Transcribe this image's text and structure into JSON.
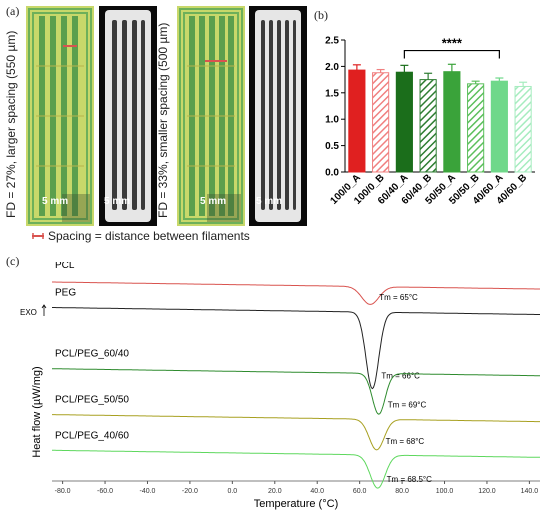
{
  "panel_a": {
    "label": "(a)",
    "caption_left": "FD = 27%, larger spacing (550 µm)",
    "caption_right": "FD = 33%, smaller spacing (500 µm)",
    "scale_labels": [
      "5 mm",
      "5 mm",
      "5 mm",
      "5 mm"
    ],
    "legend_text": "Spacing = distance between filaments",
    "colors": {
      "scaffold_green": "#7fc35a",
      "scaffold_yellow": "#d8c65a",
      "spacing_marker": "#d9534f",
      "photo_bg": "#0a0a0a",
      "photo_body": "#e9e9e9"
    }
  },
  "panel_b": {
    "label": "(b)",
    "significance": "****"
  },
  "panel_c": {
    "label": "(c)",
    "exo_label": "EXO",
    "annotations": [
      "Tm = 65°C",
      "Tm = 66°C",
      "Tm = 69°C",
      "Tm = 68°C",
      "Tm = 68.5°C"
    ]
  },
  "chart_data": [
    {
      "type": "bar",
      "categories": [
        "100/0_A",
        "100/0_B",
        "60/40_A",
        "60/40_B",
        "50/50_A",
        "50/50_B",
        "40/60_A",
        "40/60_B"
      ],
      "values": [
        1.93,
        1.88,
        1.89,
        1.75,
        1.9,
        1.67,
        1.72,
        1.62
      ],
      "errors": [
        0.1,
        0.06,
        0.13,
        0.12,
        0.14,
        0.05,
        0.06,
        0.08
      ],
      "colors": [
        "#e02020",
        "#f08080",
        "#1b6e1b",
        "#2e7d32",
        "#3aa33a",
        "#5cbf5c",
        "#6fd88a",
        "#a6ecbf"
      ],
      "hatched": [
        false,
        true,
        false,
        true,
        false,
        true,
        false,
        true
      ],
      "ylim": [
        0,
        2.5
      ],
      "yticks": [
        "0.0",
        "0.5",
        "1.0",
        "1.5",
        "2.0",
        "2.5"
      ],
      "significance_bracket": {
        "from": "60/40_A",
        "to": "40/60_A",
        "text": "****"
      },
      "title": "",
      "xlabel": "",
      "ylabel": ""
    },
    {
      "type": "line",
      "xlabel": "Temperature (°C)",
      "ylabel": "Heat flow (µW/mg)",
      "xlim": [
        -85,
        145
      ],
      "xticks": [
        "-80.0",
        "-60.0",
        "-40.0",
        "-20.0",
        "0.0",
        "20.0",
        "40.0",
        "60.0",
        "80.0",
        "100.0",
        "120.0",
        "140.0"
      ],
      "series": [
        {
          "name": "PCL",
          "color": "#d9534f",
          "baseline": 0,
          "tm": 65,
          "peak_depth": 0.7,
          "peak_width": 4
        },
        {
          "name": "PEG",
          "color": "#222222",
          "baseline": -1,
          "tm": 66,
          "peak_depth": 3.0,
          "peak_width": 3
        },
        {
          "name": "PCL/PEG_60/40",
          "color": "#2e8b2e",
          "baseline": -3.4,
          "tm": 69,
          "peak_depth": 1.6,
          "peak_width": 3
        },
        {
          "name": "PCL/PEG_50/50",
          "color": "#a8a020",
          "baseline": -5.2,
          "tm": 68,
          "peak_depth": 1.2,
          "peak_width": 3.5
        },
        {
          "name": "PCL/PEG_40/60",
          "color": "#5ed85e",
          "baseline": -6.6,
          "tm": 68.5,
          "peak_depth": 1.3,
          "peak_width": 3.5
        }
      ]
    }
  ]
}
